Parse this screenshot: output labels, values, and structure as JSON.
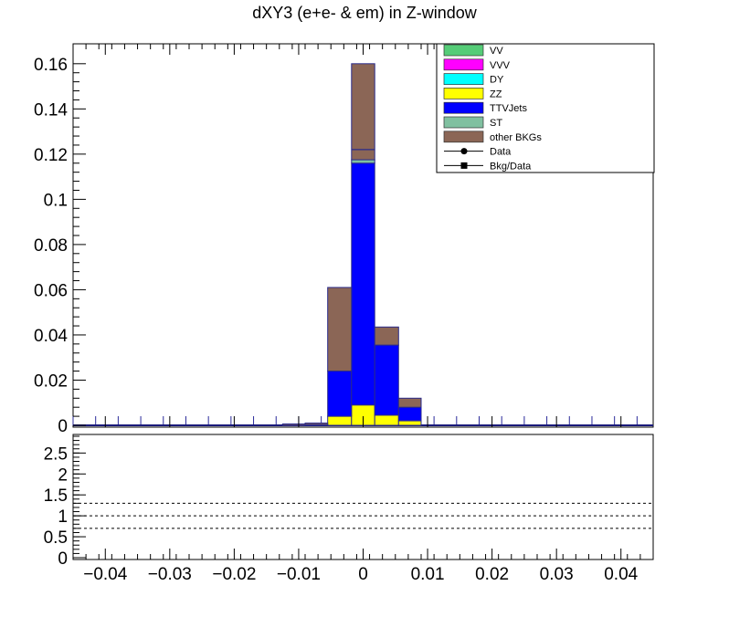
{
  "title": "dXY3 (e+e- & em) in Z-window",
  "chart_data": {
    "type": "bar",
    "stacked": true,
    "title": "dXY3 (e+e- & em) in Z-window",
    "xlabel": "",
    "ylabel": "",
    "xlim": [
      -0.045,
      0.045
    ],
    "ylim": [
      0,
      0.168
    ],
    "x_ticks": [
      -0.04,
      -0.03,
      -0.02,
      -0.01,
      0,
      0.01,
      0.02,
      0.03,
      0.04
    ],
    "x_tick_labels": [
      "−0.04",
      "−0.03",
      "−0.02",
      "−0.01",
      "0",
      "0.01",
      "0.02",
      "0.03",
      "0.04"
    ],
    "y_ticks": [
      0,
      0.02,
      0.04,
      0.06,
      0.08,
      0.1,
      0.12,
      0.14,
      0.16
    ],
    "y_tick_labels": [
      "0",
      "0.02",
      "0.04",
      "0.06",
      "0.08",
      "0.1",
      "0.12",
      "0.14",
      "0.16"
    ],
    "bin_edges": [
      -0.0125,
      -0.009,
      -0.0055,
      -0.0018,
      0.0018,
      0.0055,
      0.009
    ],
    "series": [
      {
        "name": "VV",
        "color": "#55cc77",
        "values": [
          0,
          0,
          0,
          0,
          0,
          0
        ]
      },
      {
        "name": "VVV",
        "color": "#ff00ff",
        "values": [
          0,
          0,
          0,
          0,
          0,
          0
        ]
      },
      {
        "name": "DY",
        "color": "#00ffff",
        "values": [
          0,
          0,
          0,
          0,
          0,
          0
        ]
      },
      {
        "name": "ZZ",
        "color": "#ffff00",
        "values": [
          0,
          0,
          0.004,
          0.009,
          0.0045,
          0.002
        ]
      },
      {
        "name": "TTVJets",
        "color": "#0000ff",
        "values": [
          0,
          0.0003,
          0.02,
          0.107,
          0.031,
          0.006
        ]
      },
      {
        "name": "ST",
        "color": "#80c0a0",
        "values": [
          0,
          0,
          0,
          0.0015,
          0,
          0
        ]
      },
      {
        "name": "other BKGs",
        "color": "#8b6656",
        "values": [
          0.0006,
          0.0007,
          0.037,
          0.0425,
          0.008,
          0.004
        ]
      }
    ],
    "outline_level": 0.122,
    "data_series": {
      "name": "Data"
    },
    "ratio_series": {
      "name": "Bkg/Data"
    },
    "legend_position": "top-right",
    "ratio_panel": {
      "ylim": [
        0,
        2.9
      ],
      "y_ticks": [
        0,
        0.5,
        1,
        1.5,
        2,
        2.5
      ],
      "y_tick_labels": [
        "0",
        "0.5",
        "1",
        "1.5",
        "2",
        "2.5"
      ],
      "reference_lines": [
        0.7,
        1.0,
        1.3
      ]
    }
  }
}
